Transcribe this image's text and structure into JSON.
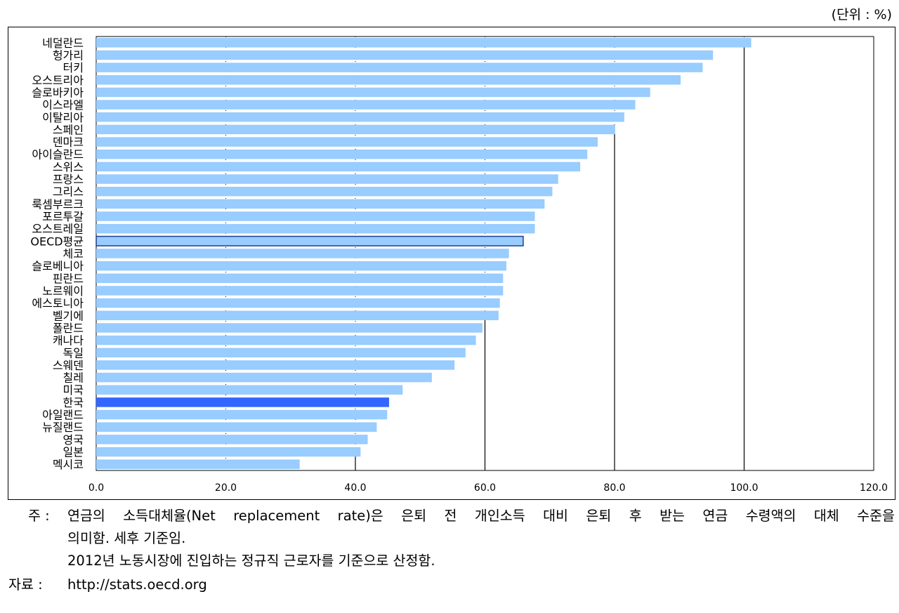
{
  "unit_label": "(단위 : %)",
  "notes": {
    "label": "주 :",
    "line1": "연금의 소득대체율(Net replacement rate)은 은퇴 전 개인소득 대비 은퇴 후 받는 연금 수령액의 대체 수준을",
    "line2": "의미함. 세후 기준임.",
    "line3": "2012년 노동시장에 진입하는 정규직 근로자를 기준으로 산정함."
  },
  "source": {
    "label": "자료 :",
    "value": "http://stats.oecd.org"
  },
  "colors": {
    "bar": "#99CCFF",
    "oecd_bar": "#99CCFF",
    "oecd_outline": "#1F3F8F",
    "korea_bar": "#3366FF",
    "tick_line": "#000000"
  },
  "chart_data": {
    "type": "bar",
    "orientation": "horizontal",
    "categories": [
      "네덜란드",
      "헝가리",
      "터키",
      "오스트리아",
      "슬로바키아",
      "이스라엘",
      "이탈리아",
      "스페인",
      "덴마크",
      "아이슬란드",
      "스위스",
      "프랑스",
      "그리스",
      "룩셈부르크",
      "포르투갈",
      "오스트레일",
      "OECD평균",
      "체코",
      "슬로베니아",
      "핀란드",
      "노르웨이",
      "에스토니아",
      "벨기에",
      "폴란드",
      "캐나다",
      "독일",
      "스웨덴",
      "칠레",
      "미국",
      "한국",
      "아일랜드",
      "뉴질랜드",
      "영국",
      "일본",
      "멕시코"
    ],
    "values": [
      101.1,
      95.2,
      93.6,
      90.2,
      85.5,
      83.2,
      81.5,
      80.1,
      77.4,
      75.8,
      74.7,
      71.3,
      70.4,
      69.2,
      67.7,
      67.7,
      65.9,
      63.7,
      63.3,
      62.8,
      62.8,
      62.3,
      62.1,
      59.6,
      58.6,
      57.0,
      55.3,
      51.8,
      47.3,
      45.2,
      44.9,
      43.3,
      41.9,
      40.8,
      31.4
    ],
    "highlight": {
      "OECD평균": "average",
      "한국": "focus"
    },
    "xlim": [
      0,
      120
    ],
    "xticks": [
      "0.0",
      "20.0",
      "40.0",
      "60.0",
      "80.0",
      "100.0",
      "120.0"
    ],
    "grid": "dotted vertical lines at each tick",
    "title": "",
    "xlabel": "",
    "ylabel": ""
  }
}
